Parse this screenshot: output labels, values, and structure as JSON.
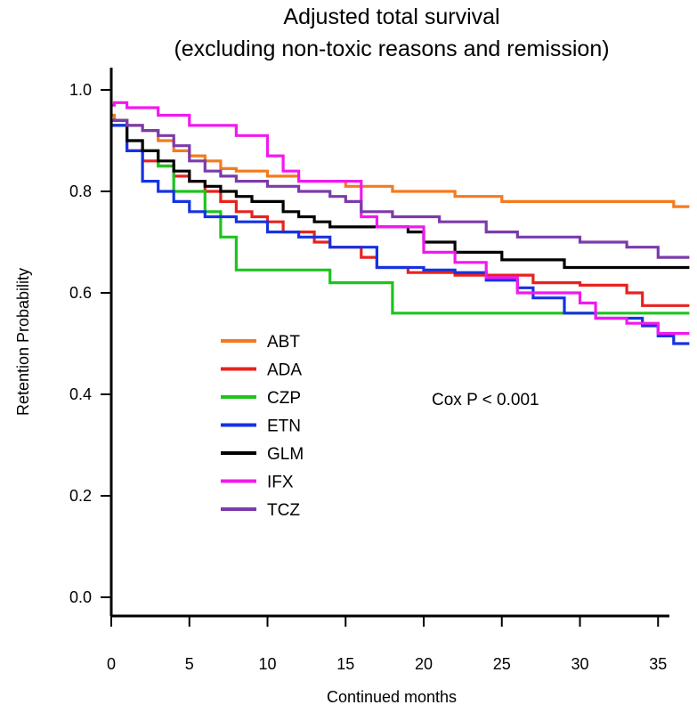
{
  "chart_data": {
    "type": "line",
    "step": true,
    "title_lines": [
      "Adjusted total survival",
      "(excluding non-toxic reasons and remission)"
    ],
    "xlabel": "Continued months",
    "ylabel": "Retention Probability",
    "xlim": [
      0,
      37
    ],
    "ylim": [
      -0.04,
      1.04
    ],
    "xticks": [
      0,
      5,
      10,
      15,
      20,
      25,
      30,
      35
    ],
    "xtick_labels": [
      "0",
      "5",
      "10",
      "15",
      "20",
      "25",
      "30",
      "35"
    ],
    "yticks": [
      0.0,
      0.2,
      0.4,
      0.6,
      0.8,
      1.0
    ],
    "ytick_labels": [
      "0.0",
      "0.2",
      "0.4",
      "0.6",
      "0.8",
      "1.0"
    ],
    "grid": false,
    "legend_position": "left-center",
    "annotation": "Cox P < 0.001",
    "series": [
      {
        "name": "ABT",
        "color": "#F47A1F",
        "x": [
          0,
          0.2,
          1,
          2,
          3,
          4,
          5,
          6,
          7,
          8,
          10,
          12,
          15,
          18,
          22,
          25,
          30,
          36,
          37
        ],
        "y": [
          0.95,
          0.94,
          0.93,
          0.92,
          0.9,
          0.88,
          0.87,
          0.86,
          0.845,
          0.84,
          0.83,
          0.82,
          0.81,
          0.8,
          0.79,
          0.78,
          0.78,
          0.77,
          0.77
        ]
      },
      {
        "name": "ADA",
        "color": "#E8221E",
        "x": [
          0,
          1,
          2,
          3,
          4,
          5,
          6,
          7,
          8,
          9,
          10,
          11,
          13,
          14,
          16,
          17,
          19,
          22,
          27,
          30,
          33,
          34,
          37
        ],
        "y": [
          0.93,
          0.88,
          0.86,
          0.85,
          0.83,
          0.82,
          0.8,
          0.78,
          0.76,
          0.75,
          0.74,
          0.72,
          0.7,
          0.69,
          0.67,
          0.65,
          0.64,
          0.635,
          0.62,
          0.615,
          0.6,
          0.575,
          0.575
        ]
      },
      {
        "name": "CZP",
        "color": "#1DC41D",
        "x": [
          0,
          1,
          2,
          3,
          4,
          6,
          7,
          8,
          14,
          18,
          37
        ],
        "y": [
          0.93,
          0.9,
          0.88,
          0.85,
          0.8,
          0.76,
          0.71,
          0.645,
          0.62,
          0.56,
          0.56
        ]
      },
      {
        "name": "ETN",
        "color": "#1633E0",
        "x": [
          0,
          1,
          2,
          3,
          4,
          5,
          6,
          8,
          10,
          12,
          14,
          17,
          20,
          22,
          24,
          26,
          27,
          29,
          31,
          34,
          35,
          36,
          37
        ],
        "y": [
          0.93,
          0.88,
          0.82,
          0.8,
          0.78,
          0.76,
          0.75,
          0.74,
          0.72,
          0.71,
          0.69,
          0.65,
          0.645,
          0.64,
          0.625,
          0.61,
          0.59,
          0.56,
          0.55,
          0.535,
          0.515,
          0.5,
          0.5
        ]
      },
      {
        "name": "GLM",
        "color": "#000000",
        "x": [
          0,
          1,
          2,
          3,
          4,
          5,
          6,
          7,
          8,
          9,
          11,
          12,
          13,
          14,
          19,
          20,
          22,
          25,
          29,
          37
        ],
        "y": [
          0.94,
          0.9,
          0.88,
          0.86,
          0.84,
          0.82,
          0.81,
          0.8,
          0.79,
          0.78,
          0.76,
          0.75,
          0.74,
          0.73,
          0.72,
          0.7,
          0.68,
          0.665,
          0.65,
          0.65
        ]
      },
      {
        "name": "IFX",
        "color": "#F218F0",
        "x": [
          0,
          0.2,
          1,
          3,
          5,
          8,
          10,
          11,
          12,
          16,
          17,
          20,
          22,
          24,
          26,
          30,
          31,
          33,
          35,
          37
        ],
        "y": [
          0.97,
          0.975,
          0.965,
          0.95,
          0.93,
          0.91,
          0.87,
          0.84,
          0.82,
          0.75,
          0.73,
          0.68,
          0.66,
          0.63,
          0.6,
          0.58,
          0.55,
          0.54,
          0.52,
          0.52
        ]
      },
      {
        "name": "TCZ",
        "color": "#7B3BAA",
        "x": [
          0,
          1,
          2,
          3,
          4,
          5,
          6,
          7,
          8,
          10,
          12,
          14,
          15,
          16,
          18,
          21,
          24,
          26,
          30,
          33,
          35,
          37
        ],
        "y": [
          0.94,
          0.93,
          0.92,
          0.91,
          0.89,
          0.86,
          0.84,
          0.83,
          0.82,
          0.81,
          0.8,
          0.79,
          0.78,
          0.76,
          0.75,
          0.74,
          0.72,
          0.71,
          0.7,
          0.69,
          0.67,
          0.67
        ]
      }
    ]
  }
}
